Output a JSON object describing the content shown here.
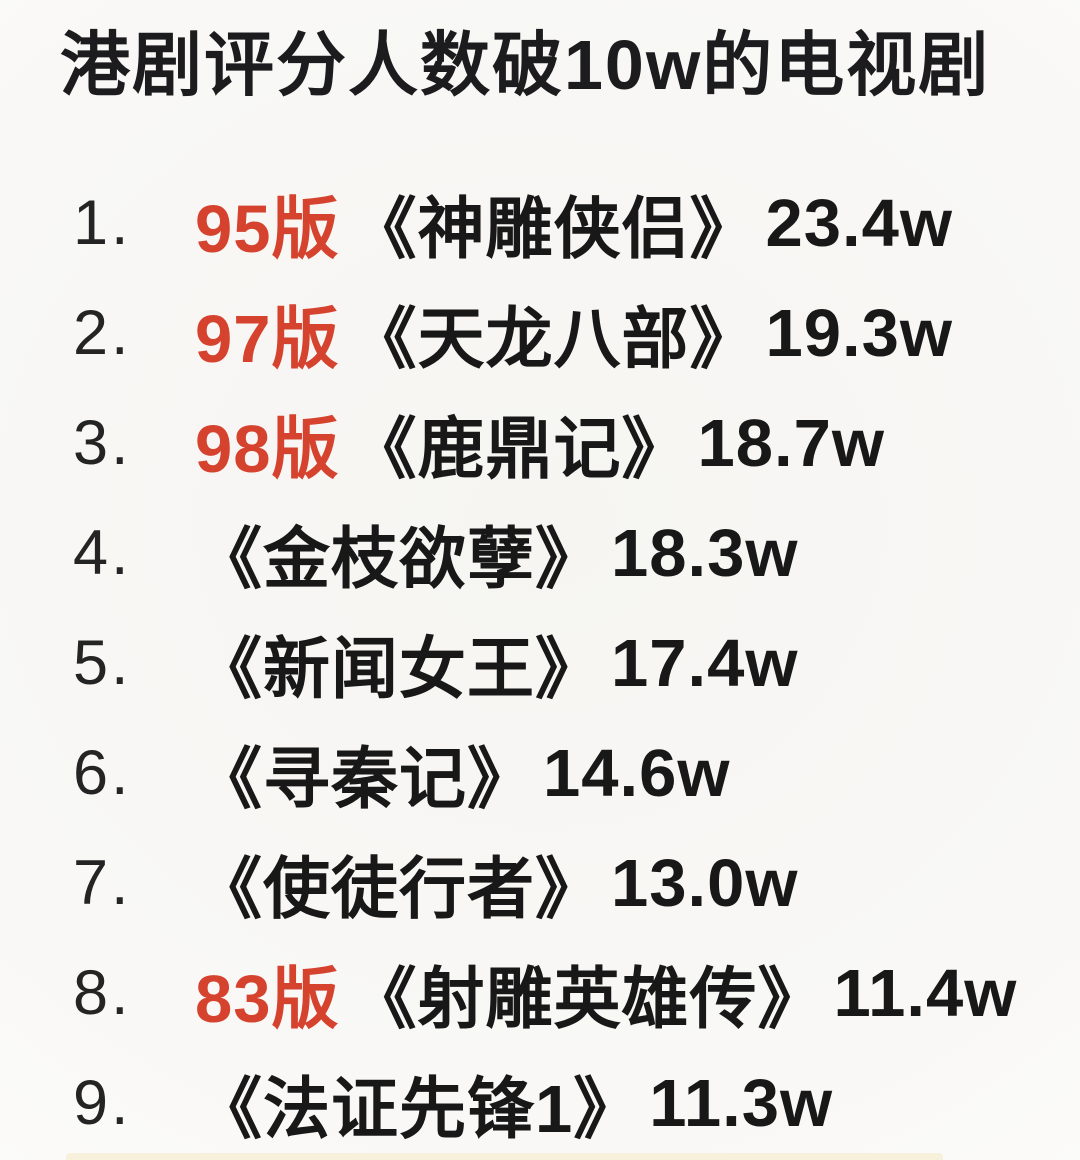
{
  "page": {
    "title": "港剧评分人数破10w的电视剧",
    "accent_color": "#d5422e",
    "text_color": "#181818",
    "strip_color": "#f7f0da"
  },
  "list": {
    "items": [
      {
        "rank": "1.",
        "prefix": "95版",
        "title": "《神雕侠侣》",
        "count": "23.4w"
      },
      {
        "rank": "2.",
        "prefix": "97版",
        "title": "《天龙八部》",
        "count": "19.3w"
      },
      {
        "rank": "3.",
        "prefix": "98版",
        "title": "《鹿鼎记》",
        "count": "18.7w"
      },
      {
        "rank": "4.",
        "prefix": "",
        "title": "《金枝欲孽》",
        "count": "18.3w"
      },
      {
        "rank": "5.",
        "prefix": "",
        "title": "《新闻女王》",
        "count": "17.4w"
      },
      {
        "rank": "6.",
        "prefix": "",
        "title": "《寻秦记》",
        "count": "14.6w"
      },
      {
        "rank": "7.",
        "prefix": "",
        "title": "《使徒行者》",
        "count": "13.0w"
      },
      {
        "rank": "8.",
        "prefix": "83版",
        "title": "《射雕英雄传》",
        "count": "11.4w"
      },
      {
        "rank": "9.",
        "prefix": "",
        "title": "《法证先锋1》",
        "count": "11.3w"
      }
    ]
  }
}
